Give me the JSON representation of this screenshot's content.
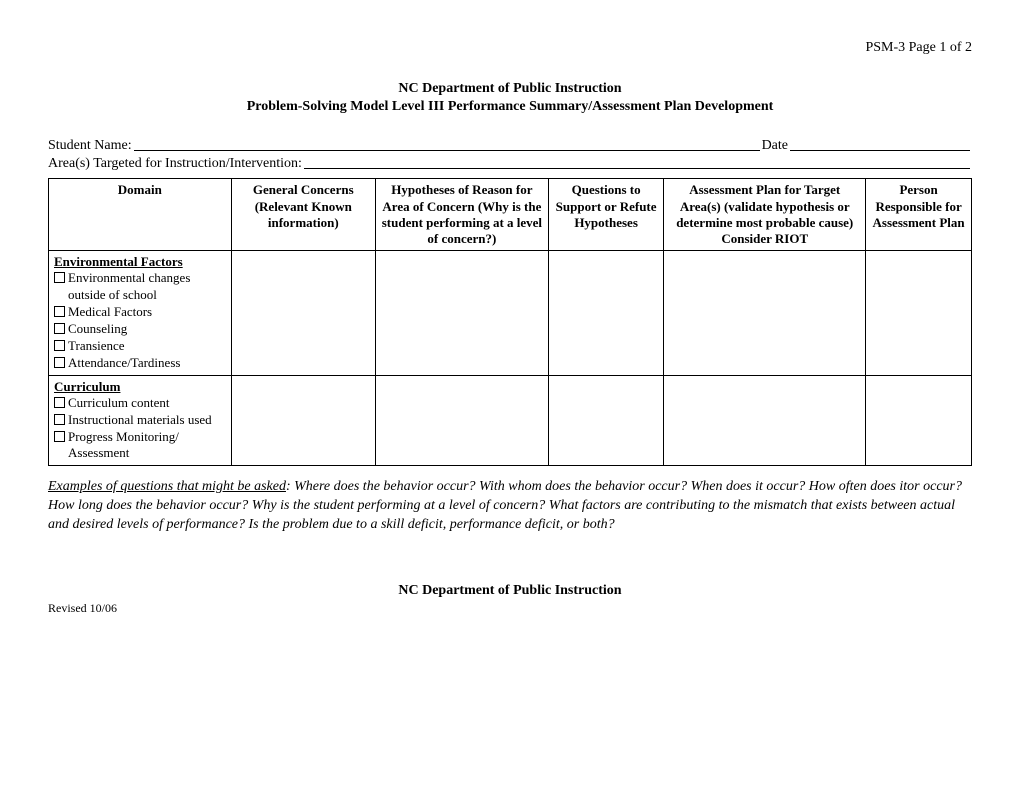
{
  "page_id": "PSM-3 Page 1 of 2",
  "header": {
    "line1": "NC Department of Public Instruction",
    "line2": "Problem-Solving Model Level III Performance Summary/Assessment Plan Development"
  },
  "fields": {
    "student_name_label": "Student Name:",
    "date_label": "Date",
    "area_label": "Area(s) Targeted for Instruction/Intervention:"
  },
  "table": {
    "headers": {
      "domain": "Domain",
      "general": "General Concerns (Relevant Known information)",
      "hypotheses": "Hypotheses of Reason for Area of Concern (Why is the student performing at a level of concern?)",
      "questions": "Questions to Support or Refute Hypotheses",
      "plan": "Assessment Plan for Target Area(s) (validate hypothesis or determine most probable cause) Consider RIOT",
      "person": "Person Responsible for Assessment Plan"
    },
    "rows": [
      {
        "title": "Environmental Factors",
        "items": [
          "Environmental changes outside of school",
          "Medical Factors",
          "Counseling",
          "Transience",
          "Attendance/Tardiness"
        ]
      },
      {
        "title": "Curriculum",
        "items": [
          "Curriculum content",
          "Instructional materials used",
          "Progress Monitoring/ Assessment"
        ]
      }
    ]
  },
  "examples": {
    "lead": "Examples of questions that might be asked",
    "body": ":  Where does the behavior occur?  With whom does the behavior occur?  When does it  occur?  How often does itor occur?  How long does the behavior occur?  Why is the student performing at a level of concern?  What factors are contributing to the mismatch that exists between actual and desired levels of performance?  Is the problem due to a skill deficit, performance deficit, or both?"
  },
  "footer": {
    "title": "NC Department of Public Instruction",
    "revised": "Revised 10/06"
  }
}
